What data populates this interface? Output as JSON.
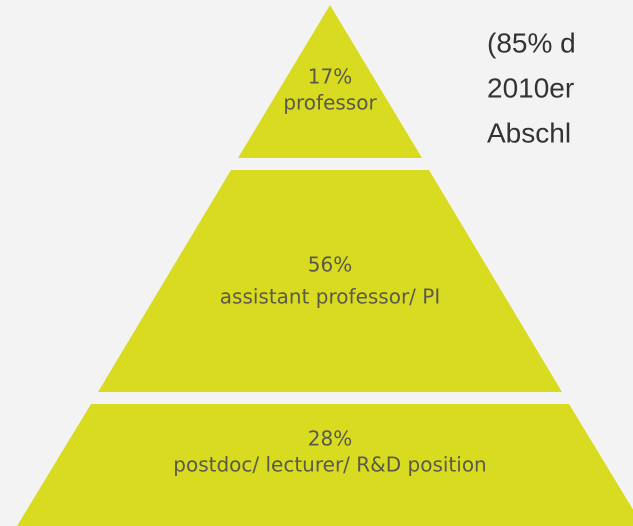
{
  "pyramid": {
    "tiers": [
      {
        "percent": "17%",
        "label": "professor"
      },
      {
        "percent": "56%",
        "label": "assistant professor/ PI"
      },
      {
        "percent": "28%",
        "label": "postdoc/ lecturer/ R&D position"
      }
    ]
  },
  "side_text": {
    "lines": [
      "(85% d",
      "2010er",
      "Abschl"
    ]
  }
}
